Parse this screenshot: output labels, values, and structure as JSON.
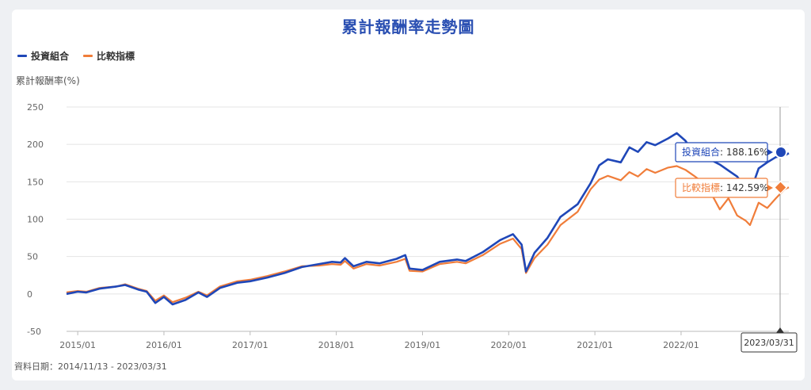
{
  "title": "累計報酬率走勢圖",
  "legend": {
    "portfolio": "投資組合",
    "benchmark": "比較指標"
  },
  "ylabel": "累計報酬率(%)",
  "date_range": "資料日期：2014/11/13 - 2023/03/31",
  "colors": {
    "portfolio": "#1f47b8",
    "benchmark": "#f07d3a",
    "title": "#2a4fb2"
  },
  "tooltip": {
    "portfolio_label": "投資組合",
    "portfolio_value": "188.16%",
    "benchmark_label": "比較指標",
    "benchmark_value": "142.59%",
    "date": "2023/03/31"
  },
  "chart_data": {
    "type": "line",
    "ylim": [
      -50,
      250
    ],
    "yticks": [
      -50,
      0,
      50,
      100,
      150,
      200,
      250
    ],
    "xlim": [
      2014.87,
      2023.25
    ],
    "xticks": [
      {
        "label": "2015/01",
        "x": 2015.0
      },
      {
        "label": "2016/01",
        "x": 2016.0
      },
      {
        "label": "2017/01",
        "x": 2017.0
      },
      {
        "label": "2018/01",
        "x": 2018.0
      },
      {
        "label": "2019/01",
        "x": 2019.0
      },
      {
        "label": "2020/01",
        "x": 2020.0
      },
      {
        "label": "2021/01",
        "x": 2021.0
      },
      {
        "label": "2022/01",
        "x": 2022.0
      }
    ],
    "grid": true,
    "legend_position": "top-left",
    "series": [
      {
        "name": "投資組合",
        "color": "#1f47b8",
        "points": [
          [
            2014.87,
            0
          ],
          [
            2015.0,
            3
          ],
          [
            2015.1,
            2
          ],
          [
            2015.25,
            7
          ],
          [
            2015.45,
            10
          ],
          [
            2015.55,
            12
          ],
          [
            2015.7,
            6
          ],
          [
            2015.8,
            3
          ],
          [
            2015.9,
            -12
          ],
          [
            2016.0,
            -4
          ],
          [
            2016.1,
            -14
          ],
          [
            2016.25,
            -8
          ],
          [
            2016.4,
            2
          ],
          [
            2016.5,
            -4
          ],
          [
            2016.65,
            8
          ],
          [
            2016.85,
            15
          ],
          [
            2017.0,
            17
          ],
          [
            2017.2,
            22
          ],
          [
            2017.4,
            28
          ],
          [
            2017.6,
            36
          ],
          [
            2017.8,
            40
          ],
          [
            2017.95,
            43
          ],
          [
            2018.05,
            42
          ],
          [
            2018.1,
            48
          ],
          [
            2018.2,
            37
          ],
          [
            2018.35,
            43
          ],
          [
            2018.5,
            41
          ],
          [
            2018.7,
            47
          ],
          [
            2018.8,
            52
          ],
          [
            2018.85,
            34
          ],
          [
            2019.0,
            32
          ],
          [
            2019.2,
            43
          ],
          [
            2019.4,
            46
          ],
          [
            2019.5,
            44
          ],
          [
            2019.7,
            56
          ],
          [
            2019.9,
            72
          ],
          [
            2020.05,
            80
          ],
          [
            2020.15,
            66
          ],
          [
            2020.2,
            30
          ],
          [
            2020.3,
            55
          ],
          [
            2020.45,
            75
          ],
          [
            2020.6,
            103
          ],
          [
            2020.8,
            120
          ],
          [
            2020.95,
            148
          ],
          [
            2021.05,
            172
          ],
          [
            2021.15,
            180
          ],
          [
            2021.3,
            176
          ],
          [
            2021.4,
            196
          ],
          [
            2021.5,
            190
          ],
          [
            2021.6,
            203
          ],
          [
            2021.7,
            199
          ],
          [
            2021.85,
            208
          ],
          [
            2021.95,
            215
          ],
          [
            2022.05,
            205
          ],
          [
            2022.15,
            188
          ],
          [
            2022.3,
            182
          ],
          [
            2022.45,
            173
          ],
          [
            2022.55,
            165
          ],
          [
            2022.65,
            157
          ],
          [
            2022.75,
            142
          ],
          [
            2022.8,
            135
          ],
          [
            2022.9,
            168
          ],
          [
            2023.0,
            176
          ],
          [
            2023.1,
            183
          ],
          [
            2023.2,
            185
          ],
          [
            2023.25,
            188.16
          ]
        ]
      },
      {
        "name": "比較指標",
        "color": "#f07d3a",
        "points": [
          [
            2014.87,
            2
          ],
          [
            2015.0,
            4
          ],
          [
            2015.1,
            3
          ],
          [
            2015.25,
            8
          ],
          [
            2015.45,
            10
          ],
          [
            2015.55,
            13
          ],
          [
            2015.7,
            7
          ],
          [
            2015.8,
            4
          ],
          [
            2015.9,
            -9
          ],
          [
            2016.0,
            -2
          ],
          [
            2016.1,
            -11
          ],
          [
            2016.25,
            -5
          ],
          [
            2016.4,
            3
          ],
          [
            2016.5,
            -2
          ],
          [
            2016.65,
            10
          ],
          [
            2016.85,
            17
          ],
          [
            2017.0,
            19
          ],
          [
            2017.2,
            24
          ],
          [
            2017.4,
            30
          ],
          [
            2017.6,
            37
          ],
          [
            2017.8,
            38
          ],
          [
            2017.95,
            40
          ],
          [
            2018.05,
            39
          ],
          [
            2018.1,
            44
          ],
          [
            2018.2,
            34
          ],
          [
            2018.35,
            40
          ],
          [
            2018.5,
            38
          ],
          [
            2018.7,
            43
          ],
          [
            2018.8,
            47
          ],
          [
            2018.85,
            31
          ],
          [
            2019.0,
            30
          ],
          [
            2019.2,
            40
          ],
          [
            2019.4,
            43
          ],
          [
            2019.5,
            41
          ],
          [
            2019.7,
            52
          ],
          [
            2019.9,
            67
          ],
          [
            2020.05,
            74
          ],
          [
            2020.15,
            60
          ],
          [
            2020.2,
            28
          ],
          [
            2020.3,
            48
          ],
          [
            2020.45,
            66
          ],
          [
            2020.6,
            92
          ],
          [
            2020.8,
            110
          ],
          [
            2020.95,
            140
          ],
          [
            2021.05,
            153
          ],
          [
            2021.15,
            158
          ],
          [
            2021.3,
            152
          ],
          [
            2021.4,
            163
          ],
          [
            2021.5,
            157
          ],
          [
            2021.6,
            167
          ],
          [
            2021.7,
            162
          ],
          [
            2021.85,
            169
          ],
          [
            2021.95,
            171
          ],
          [
            2022.05,
            166
          ],
          [
            2022.15,
            158
          ],
          [
            2022.3,
            145
          ],
          [
            2022.45,
            113
          ],
          [
            2022.55,
            128
          ],
          [
            2022.65,
            105
          ],
          [
            2022.75,
            98
          ],
          [
            2022.8,
            92
          ],
          [
            2022.9,
            122
          ],
          [
            2023.0,
            115
          ],
          [
            2023.1,
            128
          ],
          [
            2023.2,
            140
          ],
          [
            2023.25,
            142.59
          ]
        ]
      }
    ]
  }
}
